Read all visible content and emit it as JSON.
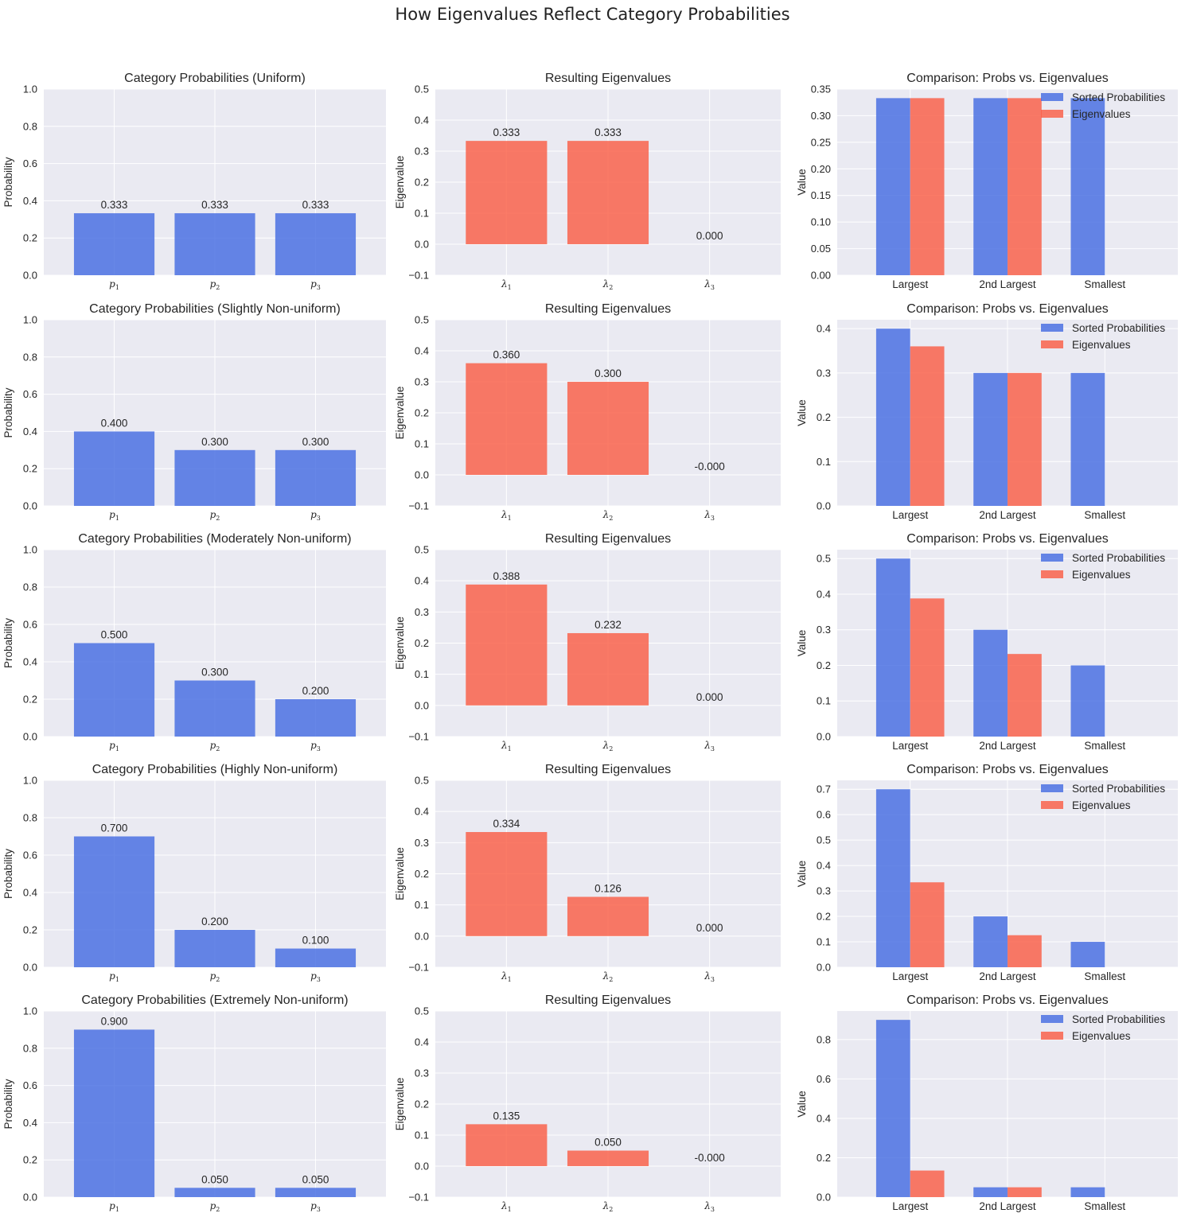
{
  "suptitle": "How Eigenvalues Reflect Category Probabilities",
  "colors": {
    "prob": "#4169e1",
    "eig": "#fa5a41",
    "background": "#eaeaf2",
    "grid": "#ffffff"
  },
  "chart_data": [
    {
      "type": "bar",
      "title": "Category Probabilities (Uniform)",
      "ylabel": "Probability",
      "categories": [
        "p1",
        "p2",
        "p3"
      ],
      "values": [
        0.333,
        0.333,
        0.333
      ],
      "data_labels": [
        "0.333",
        "0.333",
        "0.333"
      ],
      "ylim": [
        0,
        1
      ],
      "yticks": [
        "0.0",
        "0.2",
        "0.4",
        "0.6",
        "0.8",
        "1.0"
      ],
      "grid": true
    },
    {
      "type": "bar",
      "title": "Resulting Eigenvalues",
      "ylabel": "Eigenvalue",
      "categories": [
        "λ1",
        "λ2",
        "λ3"
      ],
      "values": [
        0.333,
        0.333,
        0.0
      ],
      "data_labels": [
        "0.333",
        "0.333",
        "0.000"
      ],
      "ylim": [
        -0.1,
        0.5
      ],
      "yticks": [
        "−0.1",
        "0.0",
        "0.1",
        "0.2",
        "0.3",
        "0.4",
        "0.5"
      ],
      "grid": true
    },
    {
      "type": "bar",
      "title": "Comparison: Probs vs. Eigenvalues",
      "ylabel": "Value",
      "categories": [
        "Largest",
        "2nd Largest",
        "Smallest"
      ],
      "series": [
        {
          "name": "Sorted Probabilities",
          "values": [
            0.333,
            0.333,
            0.333
          ]
        },
        {
          "name": "Eigenvalues",
          "values": [
            0.333,
            0.333,
            0.0
          ]
        }
      ],
      "ylim": [
        0,
        0.35
      ],
      "yticks": [
        "0.00",
        "0.05",
        "0.10",
        "0.15",
        "0.20",
        "0.25",
        "0.30",
        "0.35"
      ],
      "legend": "top-right",
      "grid": true
    },
    {
      "type": "bar",
      "title": "Category Probabilities (Slightly Non-uniform)",
      "ylabel": "Probability",
      "categories": [
        "p1",
        "p2",
        "p3"
      ],
      "values": [
        0.4,
        0.3,
        0.3
      ],
      "data_labels": [
        "0.400",
        "0.300",
        "0.300"
      ],
      "ylim": [
        0,
        1
      ],
      "yticks": [
        "0.0",
        "0.2",
        "0.4",
        "0.6",
        "0.8",
        "1.0"
      ],
      "grid": true
    },
    {
      "type": "bar",
      "title": "Resulting Eigenvalues",
      "ylabel": "Eigenvalue",
      "categories": [
        "λ1",
        "λ2",
        "λ3"
      ],
      "values": [
        0.36,
        0.3,
        0.0
      ],
      "data_labels": [
        "0.360",
        "0.300",
        "-0.000"
      ],
      "ylim": [
        -0.1,
        0.5
      ],
      "yticks": [
        "−0.1",
        "0.0",
        "0.1",
        "0.2",
        "0.3",
        "0.4",
        "0.5"
      ],
      "grid": true
    },
    {
      "type": "bar",
      "title": "Comparison: Probs vs. Eigenvalues",
      "ylabel": "Value",
      "categories": [
        "Largest",
        "2nd Largest",
        "Smallest"
      ],
      "series": [
        {
          "name": "Sorted Probabilities",
          "values": [
            0.4,
            0.3,
            0.3
          ]
        },
        {
          "name": "Eigenvalues",
          "values": [
            0.36,
            0.3,
            0.0
          ]
        }
      ],
      "ylim": [
        0,
        0.42
      ],
      "yticks": [
        "0.0",
        "0.1",
        "0.2",
        "0.3",
        "0.4"
      ],
      "legend": "top-right",
      "grid": true
    },
    {
      "type": "bar",
      "title": "Category Probabilities (Moderately Non-uniform)",
      "ylabel": "Probability",
      "categories": [
        "p1",
        "p2",
        "p3"
      ],
      "values": [
        0.5,
        0.3,
        0.2
      ],
      "data_labels": [
        "0.500",
        "0.300",
        "0.200"
      ],
      "ylim": [
        0,
        1
      ],
      "yticks": [
        "0.0",
        "0.2",
        "0.4",
        "0.6",
        "0.8",
        "1.0"
      ],
      "grid": true
    },
    {
      "type": "bar",
      "title": "Resulting Eigenvalues",
      "ylabel": "Eigenvalue",
      "categories": [
        "λ1",
        "λ2",
        "λ3"
      ],
      "values": [
        0.388,
        0.232,
        0.0
      ],
      "data_labels": [
        "0.388",
        "0.232",
        "0.000"
      ],
      "ylim": [
        -0.1,
        0.5
      ],
      "yticks": [
        "−0.1",
        "0.0",
        "0.1",
        "0.2",
        "0.3",
        "0.4",
        "0.5"
      ],
      "grid": true
    },
    {
      "type": "bar",
      "title": "Comparison: Probs vs. Eigenvalues",
      "ylabel": "Value",
      "categories": [
        "Largest",
        "2nd Largest",
        "Smallest"
      ],
      "series": [
        {
          "name": "Sorted Probabilities",
          "values": [
            0.5,
            0.3,
            0.2
          ]
        },
        {
          "name": "Eigenvalues",
          "values": [
            0.388,
            0.232,
            0.0
          ]
        }
      ],
      "ylim": [
        0,
        0.525
      ],
      "yticks": [
        "0.0",
        "0.1",
        "0.2",
        "0.3",
        "0.4",
        "0.5"
      ],
      "legend": "top-right",
      "grid": true
    },
    {
      "type": "bar",
      "title": "Category Probabilities (Highly Non-uniform)",
      "ylabel": "Probability",
      "categories": [
        "p1",
        "p2",
        "p3"
      ],
      "values": [
        0.7,
        0.2,
        0.1
      ],
      "data_labels": [
        "0.700",
        "0.200",
        "0.100"
      ],
      "ylim": [
        0,
        1
      ],
      "yticks": [
        "0.0",
        "0.2",
        "0.4",
        "0.6",
        "0.8",
        "1.0"
      ],
      "grid": true
    },
    {
      "type": "bar",
      "title": "Resulting Eigenvalues",
      "ylabel": "Eigenvalue",
      "categories": [
        "λ1",
        "λ2",
        "λ3"
      ],
      "values": [
        0.334,
        0.126,
        0.0
      ],
      "data_labels": [
        "0.334",
        "0.126",
        "0.000"
      ],
      "ylim": [
        -0.1,
        0.5
      ],
      "yticks": [
        "−0.1",
        "0.0",
        "0.1",
        "0.2",
        "0.3",
        "0.4",
        "0.5"
      ],
      "grid": true
    },
    {
      "type": "bar",
      "title": "Comparison: Probs vs. Eigenvalues",
      "ylabel": "Value",
      "categories": [
        "Largest",
        "2nd Largest",
        "Smallest"
      ],
      "series": [
        {
          "name": "Sorted Probabilities",
          "values": [
            0.7,
            0.2,
            0.1
          ]
        },
        {
          "name": "Eigenvalues",
          "values": [
            0.334,
            0.126,
            0.0
          ]
        }
      ],
      "ylim": [
        0,
        0.735
      ],
      "yticks": [
        "0.0",
        "0.1",
        "0.2",
        "0.3",
        "0.4",
        "0.5",
        "0.6",
        "0.7"
      ],
      "legend": "top-right",
      "grid": true
    },
    {
      "type": "bar",
      "title": "Category Probabilities (Extremely Non-uniform)",
      "ylabel": "Probability",
      "categories": [
        "p1",
        "p2",
        "p3"
      ],
      "values": [
        0.9,
        0.05,
        0.05
      ],
      "data_labels": [
        "0.900",
        "0.050",
        "0.050"
      ],
      "ylim": [
        0,
        1
      ],
      "yticks": [
        "0.0",
        "0.2",
        "0.4",
        "0.6",
        "0.8",
        "1.0"
      ],
      "grid": true
    },
    {
      "type": "bar",
      "title": "Resulting Eigenvalues",
      "ylabel": "Eigenvalue",
      "categories": [
        "λ1",
        "λ2",
        "λ3"
      ],
      "values": [
        0.135,
        0.05,
        0.0
      ],
      "data_labels": [
        "0.135",
        "0.050",
        "-0.000"
      ],
      "ylim": [
        -0.1,
        0.5
      ],
      "yticks": [
        "−0.1",
        "0.0",
        "0.1",
        "0.2",
        "0.3",
        "0.4",
        "0.5"
      ],
      "grid": true
    },
    {
      "type": "bar",
      "title": "Comparison: Probs vs. Eigenvalues",
      "ylabel": "Value",
      "categories": [
        "Largest",
        "2nd Largest",
        "Smallest"
      ],
      "series": [
        {
          "name": "Sorted Probabilities",
          "values": [
            0.9,
            0.05,
            0.05
          ]
        },
        {
          "name": "Eigenvalues",
          "values": [
            0.135,
            0.05,
            0.0
          ]
        }
      ],
      "ylim": [
        0,
        0.945
      ],
      "yticks": [
        "0.0",
        "0.2",
        "0.4",
        "0.6",
        "0.8"
      ],
      "legend": "top-right",
      "grid": true
    }
  ]
}
